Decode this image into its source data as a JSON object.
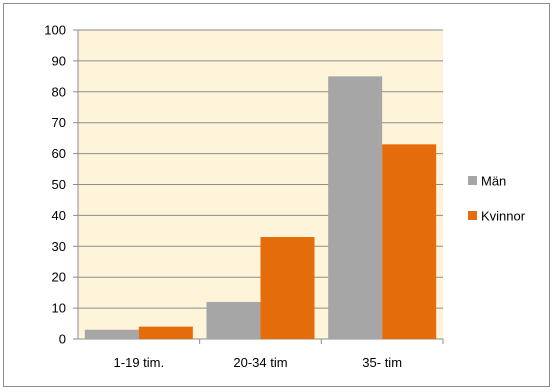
{
  "chart_data": {
    "type": "bar",
    "categories": [
      "1-19 tim.",
      "20-34 tim",
      "35- tim"
    ],
    "series": [
      {
        "name": "Män",
        "values": [
          3,
          12,
          85
        ],
        "color": "#a6a6a6"
      },
      {
        "name": "Kvinnor",
        "values": [
          4,
          33,
          63
        ],
        "color": "#e46c0a"
      }
    ],
    "ylim": [
      0,
      100
    ],
    "yticks": [
      0,
      10,
      20,
      30,
      40,
      50,
      60,
      70,
      80,
      90,
      100
    ],
    "grid": true,
    "plot_background": "#fdf4d9",
    "legend_position": "right",
    "title": "",
    "xlabel": "",
    "ylabel": ""
  }
}
